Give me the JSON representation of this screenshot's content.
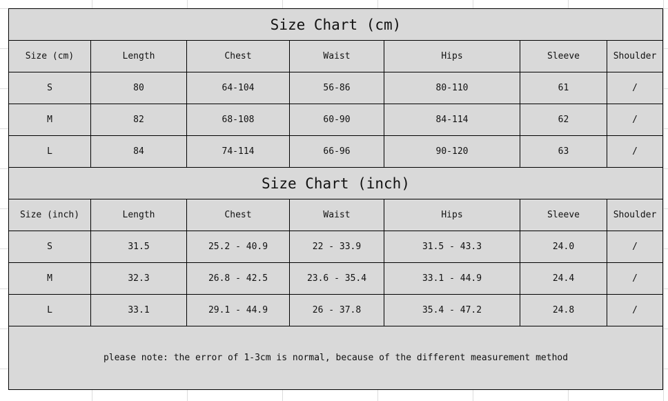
{
  "cm": {
    "title": "Size Chart (cm)",
    "headers": [
      "Size (cm)",
      "Length",
      "Chest",
      "Waist",
      "Hips",
      "Sleeve",
      "Shoulder"
    ],
    "rows": [
      [
        "S",
        "80",
        "64-104",
        "56-86",
        "80-110",
        "61",
        "/"
      ],
      [
        "M",
        "82",
        "68-108",
        "60-90",
        "84-114",
        "62",
        "/"
      ],
      [
        "L",
        "84",
        "74-114",
        "66-96",
        "90-120",
        "63",
        "/"
      ]
    ]
  },
  "inch": {
    "title": "Size Chart (inch)",
    "headers": [
      "Size (inch)",
      "Length",
      "Chest",
      "Waist",
      "Hips",
      "Sleeve",
      "Shoulder"
    ],
    "rows": [
      [
        "S",
        "31.5",
        "25.2 - 40.9",
        "22 - 33.9",
        "31.5 - 43.3",
        "24.0",
        "/"
      ],
      [
        "M",
        "32.3",
        "26.8 - 42.5",
        "23.6 - 35.4",
        "33.1 - 44.9",
        "24.4",
        "/"
      ],
      [
        "L",
        "33.1",
        "29.1 - 44.9",
        "26 - 37.8",
        "35.4 - 47.2",
        "24.8",
        "/"
      ]
    ]
  },
  "note": "please note: the error of 1-3cm is normal, because of the different measurement method"
}
